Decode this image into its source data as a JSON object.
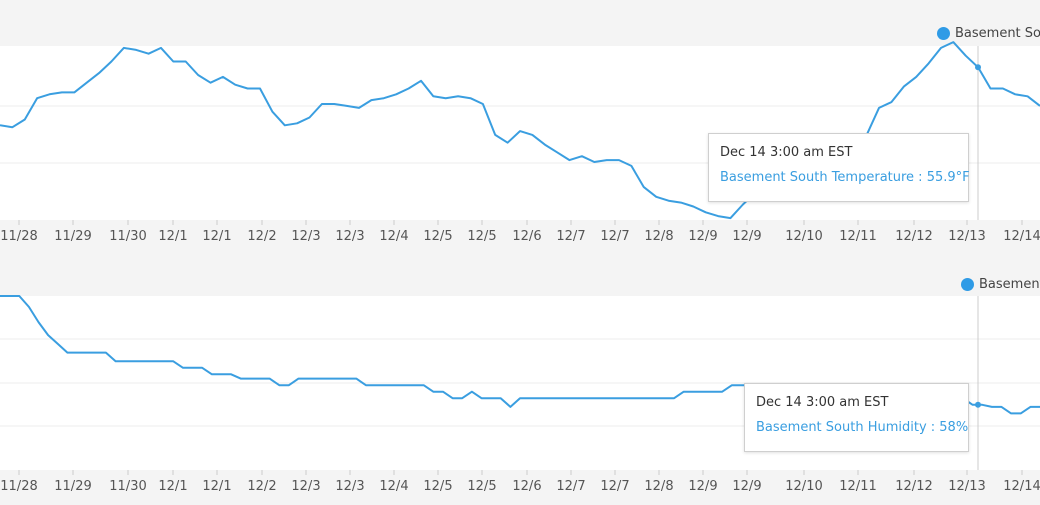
{
  "colors": {
    "line": "#3a9ee0",
    "grid": "#ececec",
    "plot_bg": "#ffffff",
    "page_bg": "#f4f4f4",
    "crosshair": "#cccccc",
    "tick_text": "#555555"
  },
  "chart_data": [
    {
      "type": "line",
      "legend": {
        "name": "Basement South",
        "position": "top-right"
      },
      "x_tick_labels": [
        "11/28",
        "11/29",
        "11/30",
        "12/1",
        "12/1",
        "12/2",
        "12/3",
        "12/3",
        "12/4",
        "12/5",
        "12/5",
        "12/6",
        "12/7",
        "12/7",
        "12/8",
        "12/9",
        "12/9",
        "12/10",
        "12/11",
        "12/12",
        "12/13",
        "12/14"
      ],
      "y_range": [
        53,
        62
      ],
      "grid": true,
      "series": [
        {
          "name": "Basement South Temperature",
          "values": [
            57.9,
            57.8,
            58.2,
            59.3,
            59.5,
            59.6,
            59.6,
            60.1,
            60.6,
            61.2,
            61.9,
            61.8,
            61.6,
            61.9,
            61.2,
            61.2,
            60.5,
            60.1,
            60.4,
            60.0,
            59.8,
            59.8,
            58.6,
            57.9,
            58.0,
            58.3,
            59.0,
            59.0,
            58.9,
            58.8,
            59.2,
            59.3,
            59.5,
            59.8,
            60.2,
            59.4,
            59.3,
            59.4,
            59.3,
            59.0,
            57.4,
            57.0,
            57.6,
            57.4,
            56.9,
            56.5,
            56.1,
            56.3,
            56.0,
            56.1,
            56.1,
            55.8,
            54.7,
            54.2,
            54.0,
            53.9,
            53.7,
            53.4,
            53.2,
            53.1,
            53.8,
            54.4,
            55.4,
            55.5,
            54.9,
            54.7,
            54.6,
            55.2,
            55.9,
            56.6,
            57.4,
            58.8,
            59.1,
            59.9,
            60.4,
            61.1,
            61.9,
            62.2,
            61.5,
            60.9,
            59.8,
            59.8,
            59.5,
            59.4,
            58.9
          ],
          "tooltip": {
            "time": "Dec 14 3:00 am EST",
            "value": "55.9°F",
            "label": "Basement South Temperature : 55.9°F"
          }
        }
      ]
    },
    {
      "type": "line",
      "legend": {
        "name": "Basement",
        "position": "top-right"
      },
      "x_tick_labels": [
        "11/28",
        "11/29",
        "11/30",
        "12/1",
        "12/1",
        "12/2",
        "12/3",
        "12/3",
        "12/4",
        "12/5",
        "12/5",
        "12/6",
        "12/7",
        "12/7",
        "12/8",
        "12/9",
        "12/9",
        "12/10",
        "12/11",
        "12/12",
        "12/13",
        "12/14"
      ],
      "y_range": [
        55,
        63
      ],
      "grid": true,
      "series": [
        {
          "name": "Basement South Humidity",
          "values": [
            63,
            63,
            63,
            62.5,
            61.8,
            61.2,
            60.8,
            60.4,
            60.4,
            60.4,
            60.4,
            60.4,
            60.0,
            60.0,
            60.0,
            60.0,
            60.0,
            60.0,
            60.0,
            59.7,
            59.7,
            59.7,
            59.4,
            59.4,
            59.4,
            59.2,
            59.2,
            59.2,
            59.2,
            58.9,
            58.9,
            59.2,
            59.2,
            59.2,
            59.2,
            59.2,
            59.2,
            59.2,
            58.9,
            58.9,
            58.9,
            58.9,
            58.9,
            58.9,
            58.9,
            58.6,
            58.6,
            58.3,
            58.3,
            58.6,
            58.3,
            58.3,
            58.3,
            57.9,
            58.3,
            58.3,
            58.3,
            58.3,
            58.3,
            58.3,
            58.3,
            58.3,
            58.3,
            58.3,
            58.3,
            58.3,
            58.3,
            58.3,
            58.3,
            58.3,
            58.3,
            58.6,
            58.6,
            58.6,
            58.6,
            58.6,
            58.9,
            58.9,
            58.9,
            58.9,
            58.9,
            58.6,
            58.6,
            58.9,
            58.9,
            58.9,
            58.9,
            58.9,
            58.9,
            58.9,
            58.9,
            58.9,
            58.9,
            58.9,
            58.9,
            58.9,
            58.9,
            58.6,
            58.6,
            58.3,
            58.3,
            58.0,
            58.0,
            57.9,
            57.9,
            57.6,
            57.6,
            57.9,
            57.9
          ],
          "tooltip": {
            "time": "Dec 14 3:00 am EST",
            "value": "58%",
            "label": "Basement South Humidity : 58%"
          }
        }
      ]
    }
  ]
}
